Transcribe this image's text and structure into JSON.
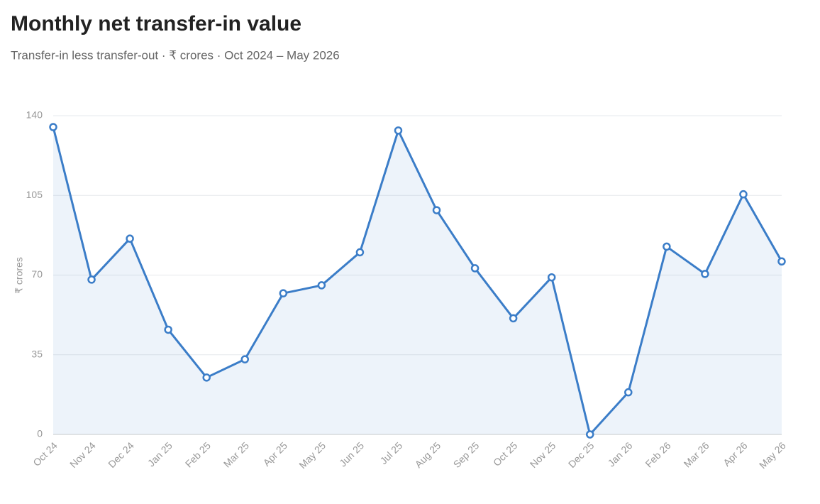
{
  "chart_data": {
    "type": "line",
    "title": "Monthly net transfer-in value",
    "subtitle": "Transfer-in less transfer-out · ₹ crores · Oct 2024 – May 2026",
    "y_label": "₹ crores",
    "categories": [
      "Oct 24",
      "Nov 24",
      "Dec 24",
      "Jan 25",
      "Feb 25",
      "Mar 25",
      "Apr 25",
      "May 25",
      "Jun 25",
      "Jul 25",
      "Aug 25",
      "Sep 25",
      "Oct 25",
      "Nov 25",
      "Dec 25",
      "Jan 26",
      "Feb 26",
      "Mar 26",
      "Apr 26",
      "May 26"
    ],
    "series": [
      {
        "name": "Net transfer-in",
        "color": "#3b7dc8",
        "values": [
          135,
          68,
          86,
          46,
          25,
          33,
          62,
          65.5,
          80,
          133.5,
          98.5,
          73,
          51,
          69,
          0,
          18.5,
          82.5,
          70.5,
          105.5,
          76
        ]
      }
    ],
    "ylim": [
      0,
      140
    ],
    "yticks": [
      0,
      35,
      70,
      105,
      140
    ],
    "grid": true
  }
}
